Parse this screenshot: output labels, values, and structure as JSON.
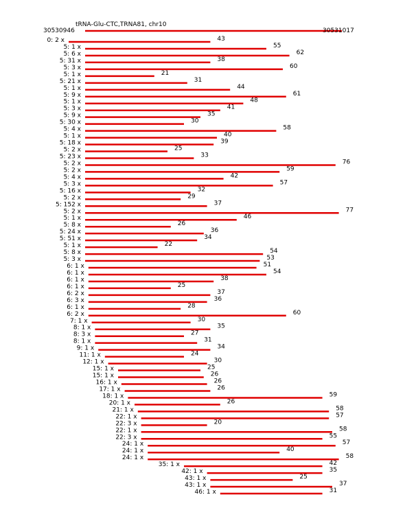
{
  "header": {
    "title": "tRNA-Glu-CTC,TRNA81, chr10",
    "start": "30530946",
    "end": "30531017"
  },
  "rows": [
    {
      "label": "0: 2 x",
      "value": 43
    },
    {
      "label": "5: 1 x",
      "value": 55
    },
    {
      "label": "5: 6 x",
      "value": 62
    },
    {
      "label": "5: 31 x",
      "value": 38
    },
    {
      "label": "5: 3 x",
      "value": 60
    },
    {
      "label": "5: 1 x",
      "value": 21
    },
    {
      "label": "5: 21 x",
      "value": 31
    },
    {
      "label": "5: 1 x",
      "value": 44
    },
    {
      "label": "5: 9 x",
      "value": 61
    },
    {
      "label": "5: 1 x",
      "value": 48
    },
    {
      "label": "5: 3 x",
      "value": 41
    },
    {
      "label": "5: 9 x",
      "value": 35
    },
    {
      "label": "5: 30 x",
      "value": 30
    },
    {
      "label": "5: 4 x",
      "value": 58
    },
    {
      "label": "5: 1 x",
      "value": 40
    },
    {
      "label": "5: 18 x",
      "value": 39
    },
    {
      "label": "5: 2 x",
      "value": 25
    },
    {
      "label": "5: 23 x",
      "value": 33
    },
    {
      "label": "5: 2 x",
      "value": 76
    },
    {
      "label": "5: 2 x",
      "value": 59
    },
    {
      "label": "5: 4 x",
      "value": 42
    },
    {
      "label": "5: 3 x",
      "value": 57
    },
    {
      "label": "5: 16 x",
      "value": 32
    },
    {
      "label": "5: 2 x",
      "value": 29
    },
    {
      "label": "5: 152 x",
      "value": 37
    },
    {
      "label": "5: 2 x",
      "value": 77
    },
    {
      "label": "5: 1 x",
      "value": 46
    },
    {
      "label": "5: 8 x",
      "value": 26
    },
    {
      "label": "5: 24 x",
      "value": 36
    },
    {
      "label": "5: 51 x",
      "value": 34
    },
    {
      "label": "5: 1 x",
      "value": 22
    },
    {
      "label": "5: 8 x",
      "value": 54
    },
    {
      "label": "5: 3 x",
      "value": 53
    },
    {
      "label": "6: 1 x",
      "value": 51
    },
    {
      "label": "6: 1 x",
      "value": 54
    },
    {
      "label": "6: 1 x",
      "value": 38
    },
    {
      "label": "6: 1 x",
      "value": 25
    },
    {
      "label": "6: 2 x",
      "value": 37
    },
    {
      "label": "6: 3 x",
      "value": 36
    },
    {
      "label": "6: 1 x",
      "value": 28
    },
    {
      "label": "6: 2 x",
      "value": 60
    },
    {
      "label": "7: 1 x",
      "value": 30
    },
    {
      "label": "8: 1 x",
      "value": 35
    },
    {
      "label": "8: 3 x",
      "value": 27
    },
    {
      "label": "8: 1 x",
      "value": 31
    },
    {
      "label": "9: 1 x",
      "value": 34
    },
    {
      "label": "11: 1 x",
      "value": 24
    },
    {
      "label": "12: 1 x",
      "value": 30
    },
    {
      "label": "15: 1 x",
      "value": 25
    },
    {
      "label": "15: 1 x",
      "value": 26
    },
    {
      "label": "16: 1 x",
      "value": 26
    },
    {
      "label": "17: 1 x",
      "value": 26
    },
    {
      "label": "18: 1 x",
      "value": 59
    },
    {
      "label": "20: 1 x",
      "value": 26
    },
    {
      "label": "21: 1 x",
      "value": 58
    },
    {
      "label": "22: 1 x",
      "value": 57
    },
    {
      "label": "22: 3 x",
      "value": 20
    },
    {
      "label": "22: 1 x",
      "value": 58
    },
    {
      "label": "22: 3 x",
      "value": 55
    },
    {
      "label": "24: 1 x",
      "value": 57
    },
    {
      "label": "24: 1 x",
      "value": 40
    },
    {
      "label": "24: 1 x",
      "value": 58
    },
    {
      "label": "35: 1 x",
      "value": 42
    },
    {
      "label": "42: 1 x",
      "value": 35
    },
    {
      "label": "43: 1 x",
      "value": 25
    },
    {
      "label": "43: 1 x",
      "value": 37
    },
    {
      "label": "46: 1 x",
      "value": 31
    }
  ]
}
